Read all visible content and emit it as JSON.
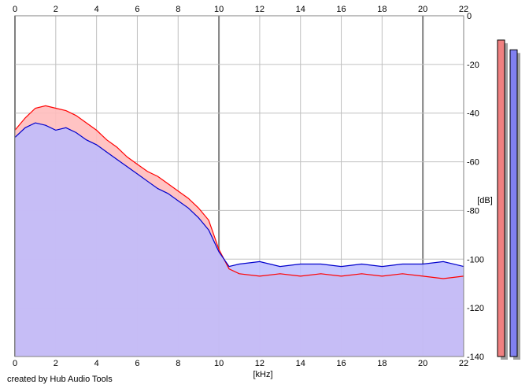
{
  "chart_data": {
    "type": "area",
    "title": "",
    "xlabel": "[kHz]",
    "ylabel": "[dB]",
    "xlim": [
      0,
      22
    ],
    "ylim": [
      -140,
      0
    ],
    "x_ticks": [
      0,
      2,
      4,
      6,
      8,
      10,
      12,
      14,
      16,
      18,
      20,
      22
    ],
    "y_ticks": [
      0,
      -20,
      -40,
      -60,
      -80,
      -100,
      -120,
      -140
    ],
    "grid": true,
    "major_x_lines": [
      0,
      10,
      20
    ],
    "series": [
      {
        "channel": "red",
        "color": "#ff0000",
        "fill": "#ffbcbc",
        "x": [
          0,
          0.5,
          1,
          1.5,
          2,
          2.5,
          3,
          3.5,
          4,
          4.5,
          5,
          5.5,
          6,
          6.5,
          7,
          7.5,
          8,
          8.5,
          9,
          9.5,
          10,
          10.5,
          11,
          12,
          13,
          14,
          15,
          16,
          17,
          18,
          19,
          20,
          21,
          22
        ],
        "values": [
          -47,
          -42,
          -38,
          -37,
          -38,
          -39,
          -41,
          -44,
          -47,
          -51,
          -54,
          -58,
          -61,
          -64,
          -66,
          -69,
          -72,
          -75,
          -79,
          -84,
          -96,
          -104,
          -106,
          -107,
          -106,
          -107,
          -106,
          -107,
          -106,
          -107,
          -106,
          -107,
          -108,
          -107
        ]
      },
      {
        "channel": "blue",
        "color": "#0000cc",
        "fill": "#bcbcff",
        "x": [
          0,
          0.5,
          1,
          1.5,
          2,
          2.5,
          3,
          3.5,
          4,
          4.5,
          5,
          5.5,
          6,
          6.5,
          7,
          7.5,
          8,
          8.5,
          9,
          9.5,
          10,
          10.5,
          11,
          12,
          13,
          14,
          15,
          16,
          17,
          18,
          19,
          20,
          21,
          22
        ],
        "values": [
          -50,
          -46,
          -44,
          -45,
          -47,
          -46,
          -48,
          -51,
          -53,
          -56,
          -59,
          -62,
          -65,
          -68,
          -71,
          -73,
          -76,
          -79,
          -83,
          -88,
          -97,
          -103,
          -102,
          -101,
          -103,
          -102,
          -102,
          -103,
          -102,
          -103,
          -102,
          -102,
          -101,
          -103
        ]
      }
    ],
    "level_meters": [
      {
        "channel": "red",
        "color": "#f08080",
        "value_db": -10
      },
      {
        "channel": "blue",
        "color": "#8080f0",
        "value_db": -14
      }
    ],
    "credit": "created by Hub Audio Tools"
  }
}
